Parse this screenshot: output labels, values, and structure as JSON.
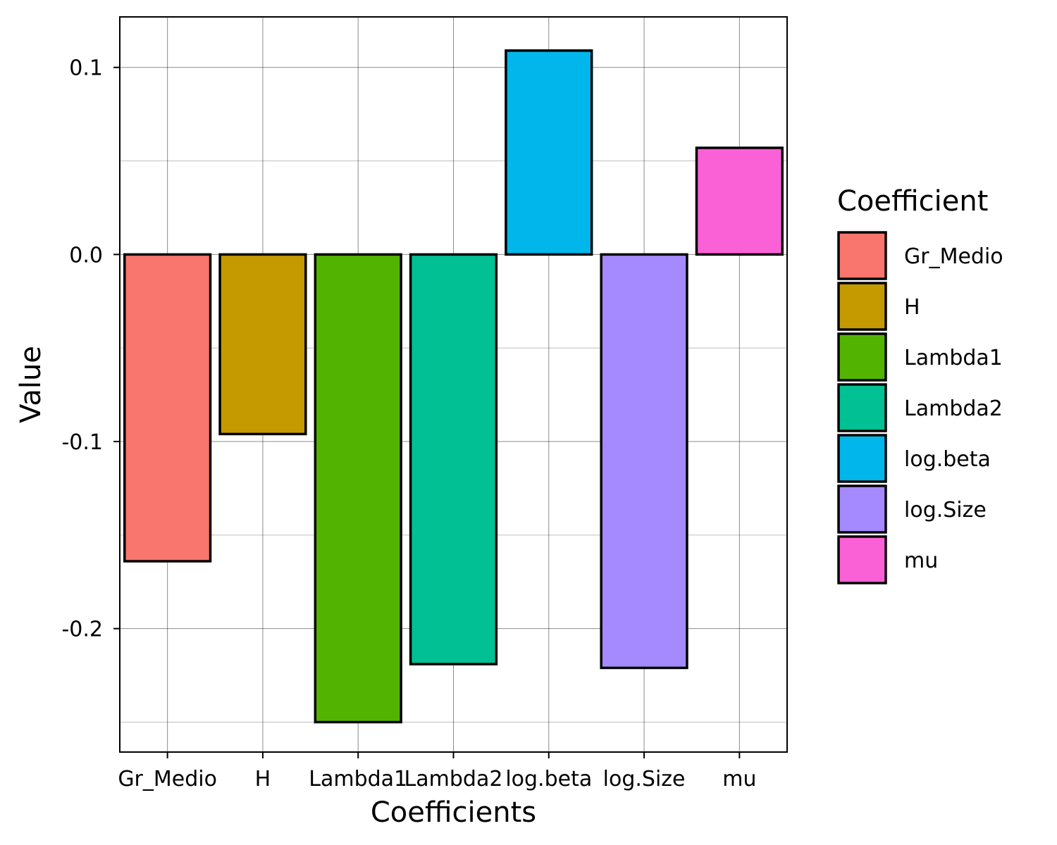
{
  "chart_data": {
    "type": "bar",
    "title": "",
    "xlabel": "Coefficients",
    "ylabel": "Value",
    "categories": [
      "Gr_Medio",
      "H",
      "Lambda1",
      "Lambda2",
      "log.beta",
      "log.Size",
      "mu"
    ],
    "values": [
      -0.164,
      -0.096,
      -0.25,
      -0.219,
      0.109,
      -0.221,
      0.057
    ],
    "colors": [
      "#F8766D",
      "#C49A00",
      "#53B400",
      "#00C094",
      "#00B6EB",
      "#A58AFF",
      "#FB61D7"
    ],
    "ylim": [
      -0.266,
      0.127
    ],
    "y_ticks": [
      0.1,
      0.0,
      -0.1,
      -0.2
    ],
    "y_tick_labels": [
      "0.1",
      "0.0",
      "-0.1",
      "-0.2"
    ],
    "grid": true,
    "legend": {
      "title": "Coefficient",
      "position": "right",
      "entries": [
        "Gr_Medio",
        "H",
        "Lambda1",
        "Lambda2",
        "log.beta",
        "log.Size",
        "mu"
      ]
    }
  }
}
